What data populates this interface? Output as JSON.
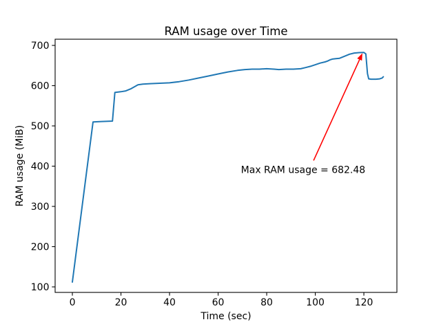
{
  "chart_data": {
    "type": "line",
    "title": "RAM usage over Time",
    "xlabel": "Time (sec)",
    "ylabel": "RAM usage (MiB)",
    "xlim": [
      -7.1,
      133.6
    ],
    "ylim": [
      86.3,
      715.4
    ],
    "xticks": [
      0,
      20,
      40,
      60,
      80,
      100,
      120
    ],
    "yticks": [
      100,
      200,
      300,
      400,
      500,
      600,
      700
    ],
    "grid": false,
    "legend": false,
    "axis_color": "#000000",
    "background_color": "#ffffff",
    "series": [
      {
        "name": "RAM usage",
        "color": "#1f77b4",
        "points": [
          [
            0,
            112
          ],
          [
            8.5,
            510
          ],
          [
            12,
            511
          ],
          [
            16.5,
            512
          ],
          [
            17.5,
            583
          ],
          [
            20,
            585
          ],
          [
            22,
            587
          ],
          [
            24,
            592
          ],
          [
            25.5,
            597
          ],
          [
            27,
            602
          ],
          [
            29,
            604
          ],
          [
            32,
            605
          ],
          [
            36,
            606
          ],
          [
            40,
            607
          ],
          [
            44,
            610
          ],
          [
            48,
            614
          ],
          [
            52,
            619
          ],
          [
            56,
            624
          ],
          [
            60,
            629
          ],
          [
            64,
            634
          ],
          [
            68,
            638
          ],
          [
            71,
            640
          ],
          [
            74,
            641
          ],
          [
            77,
            641
          ],
          [
            80,
            642
          ],
          [
            83,
            641
          ],
          [
            85,
            640
          ],
          [
            88,
            641
          ],
          [
            91,
            641
          ],
          [
            94,
            642
          ],
          [
            96,
            645
          ],
          [
            98,
            648
          ],
          [
            100,
            652
          ],
          [
            102,
            656
          ],
          [
            104,
            659
          ],
          [
            105,
            661
          ],
          [
            106,
            664
          ],
          [
            107,
            666
          ],
          [
            108.5,
            667
          ],
          [
            110,
            668
          ],
          [
            112,
            673
          ],
          [
            114,
            678
          ],
          [
            116,
            681
          ],
          [
            118,
            682
          ],
          [
            120,
            682.48
          ],
          [
            120.8,
            679
          ],
          [
            121.5,
            630
          ],
          [
            122,
            617
          ],
          [
            123,
            616
          ],
          [
            125,
            616
          ],
          [
            126.5,
            617
          ],
          [
            127.5,
            619
          ],
          [
            128,
            622
          ]
        ]
      }
    ],
    "annotation": {
      "text": "Max RAM usage = 682.48",
      "color": "#ff0000",
      "text_xy": [
        95.0,
        390.5
      ],
      "arrow_from": [
        99.3,
        414
      ],
      "arrow_to": [
        119.4,
        680.5
      ]
    },
    "max_ram_mib": 682.48
  }
}
